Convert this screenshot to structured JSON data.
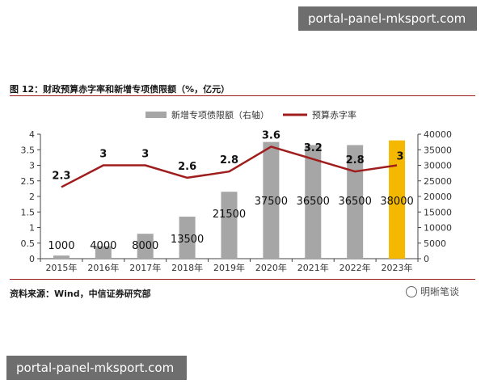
{
  "watermark": "portal-panel-mksport.com",
  "figure": {
    "title": "图 12：财政预算赤字率和新增专项债限额（%，亿元）",
    "source": "资料来源：Wind，中信证券研究部",
    "brand": "明晰笔谈"
  },
  "colors": {
    "bar": "#a6a6a6",
    "bar_highlight": "#f5b800",
    "line": "#a01d1d",
    "axis": "#444444"
  },
  "chart_data": {
    "type": "bar",
    "categories": [
      "2015年",
      "2016年",
      "2017年",
      "2018年",
      "2019年",
      "2020年",
      "2021年",
      "2022年",
      "2023年"
    ],
    "series": [
      {
        "name": "新增专项债限额（右轴）",
        "type": "bar",
        "axis": "right",
        "values": [
          1000,
          4000,
          8000,
          13500,
          21500,
          37500,
          36500,
          36500,
          38000
        ],
        "highlight_index": 8
      },
      {
        "name": "预算赤字率",
        "type": "line",
        "axis": "left",
        "values": [
          2.3,
          3,
          3,
          2.6,
          2.8,
          3.6,
          3.2,
          2.8,
          3
        ]
      }
    ],
    "left_axis": {
      "min": 0,
      "max": 4,
      "step": 0.5,
      "ticks": [
        "0",
        "0.5",
        "1",
        "1.5",
        "2",
        "2.5",
        "3",
        "3.5",
        "4"
      ]
    },
    "right_axis": {
      "min": 0,
      "max": 40000,
      "step": 5000,
      "ticks": [
        "0",
        "5000",
        "10000",
        "15000",
        "20000",
        "25000",
        "30000",
        "35000",
        "40000"
      ]
    },
    "legend_position": "top-center",
    "grid": false
  }
}
